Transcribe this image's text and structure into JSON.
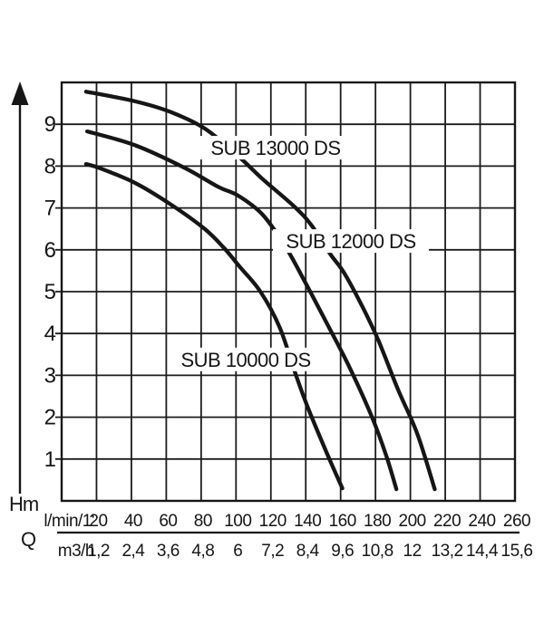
{
  "chart_data": {
    "type": "line",
    "title": "",
    "grid": "on",
    "legend_position": "inline-labels-on-curves",
    "colors": {
      "ink": "#161616",
      "background": "#ffffff",
      "curve": "#161616",
      "grid_line": "#1c1c1c",
      "label_background": "#ffffff"
    },
    "y_axis": {
      "label": "Hm",
      "range": [
        0,
        10
      ],
      "grid_step": 1,
      "ticks": [
        "1",
        "2",
        "3",
        "4",
        "5",
        "6",
        "7",
        "8",
        "9"
      ],
      "tick_values": [
        1,
        2,
        3,
        4,
        5,
        6,
        7,
        8,
        9
      ],
      "arrow": "up"
    },
    "x_axis": {
      "quantity_label": "Q",
      "label_primary": "l/min/1'",
      "label_secondary": "m3/h",
      "range_lmin": [
        0,
        260
      ],
      "grid_step_lmin": 20,
      "ticks_lmin": [
        "20",
        "40",
        "60",
        "80",
        "100",
        "120",
        "140",
        "160",
        "180",
        "200",
        "220",
        "240",
        "260"
      ],
      "tick_values_lmin": [
        20,
        40,
        60,
        80,
        100,
        120,
        140,
        160,
        180,
        200,
        220,
        240,
        260
      ],
      "ticks_m3h": [
        "1,2",
        "2,4",
        "3,6",
        "4,8",
        "6",
        "7,2",
        "8,4",
        "9,6",
        "10,8",
        "12",
        "13,2",
        "14,4",
        "15,6"
      ]
    },
    "series": [
      {
        "name": "SUB 13000 DS",
        "label_at_lmin_m": [
          122.7,
          8.44
        ],
        "points_lmin_m": [
          [
            14,
            9.78
          ],
          [
            42,
            9.55
          ],
          [
            62,
            9.3
          ],
          [
            82,
            8.9
          ],
          [
            101,
            8.25
          ],
          [
            115,
            7.7
          ],
          [
            133,
            7.05
          ],
          [
            143,
            6.6
          ],
          [
            154,
            5.9
          ],
          [
            162,
            5.45
          ],
          [
            173,
            4.6
          ],
          [
            182,
            3.8
          ],
          [
            193,
            2.65
          ],
          [
            204,
            1.6
          ],
          [
            214,
            0.28
          ]
        ]
      },
      {
        "name": "SUB 12000 DS",
        "label_at_lmin_m": [
          165.9,
          6.21
        ],
        "points_lmin_m": [
          [
            14.6,
            8.83
          ],
          [
            42,
            8.5
          ],
          [
            70,
            7.97
          ],
          [
            90,
            7.5
          ],
          [
            101,
            7.3
          ],
          [
            115,
            6.85
          ],
          [
            128,
            6.1
          ],
          [
            140,
            5.2
          ],
          [
            152,
            4.25
          ],
          [
            165,
            3.2
          ],
          [
            178,
            2.0
          ],
          [
            186,
            1.1
          ],
          [
            192,
            0.28
          ]
        ]
      },
      {
        "name": "SUB 10000 DS",
        "label_at_lmin_m": [
          105.6,
          3.38
        ],
        "points_lmin_m": [
          [
            14,
            8.05
          ],
          [
            22,
            7.95
          ],
          [
            42,
            7.6
          ],
          [
            62,
            7.1
          ],
          [
            82,
            6.5
          ],
          [
            93,
            6.05
          ],
          [
            102,
            5.6
          ],
          [
            114,
            5.0
          ],
          [
            125,
            4.15
          ],
          [
            134,
            3.05
          ],
          [
            141,
            2.25
          ],
          [
            152,
            1.15
          ],
          [
            161,
            0.3
          ]
        ]
      }
    ]
  }
}
